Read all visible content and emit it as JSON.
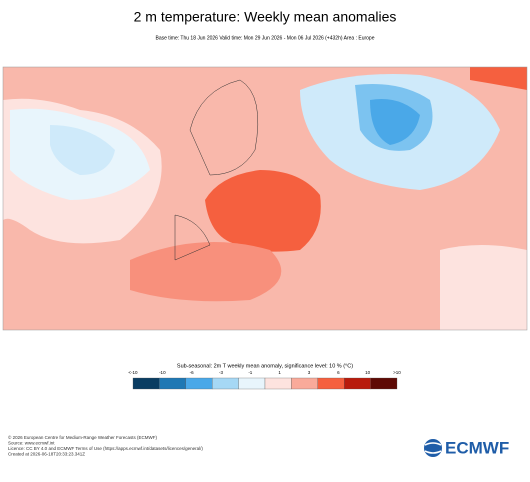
{
  "header": {
    "title": "2 m temperature: Weekly mean anomalies",
    "subtitle": "Base time: Thu 18 Jun 2026 Valid time: Mon 29 Jun 2026 - Mon 06 Jul 2026 (+432h) Area : Europe"
  },
  "legend": {
    "title": "Sub-seasonal: 2m T weekly mean anomaly, significance level: 10 % (°C)",
    "labels": [
      "<-10",
      "-10",
      "-6",
      "-3",
      "-1",
      "1",
      "3",
      "6",
      "10",
      ">10"
    ],
    "colors": [
      "#0a3d62",
      "#1f78b4",
      "#4aa8e8",
      "#a6d8f5",
      "#e8f5fc",
      "#fde3df",
      "#f9aa9a",
      "#f5603f",
      "#b81b0c",
      "#5e0a05"
    ]
  },
  "footer": {
    "lines": [
      "© 2026 European Centre for Medium-Range Weather Forecasts (ECMWF)",
      "Source: www.ecmwf.int",
      "Licence: CC BY 4.0 and ECMWF Terms of Use (https://apps.ecmwf.int/datasets/licences/general/)",
      "Created at 2026-06-18T20:33:23.341Z"
    ],
    "logo": "ECMWF"
  }
}
